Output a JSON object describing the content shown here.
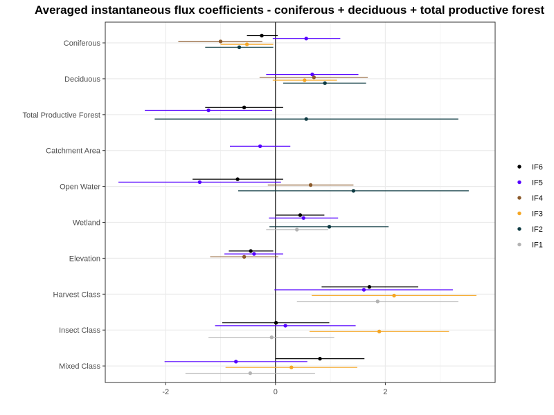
{
  "chart_data": {
    "type": "scatter",
    "title": "Averaged instantaneous flux coefficients - coniferous + deciduous + total productive forest",
    "xlabel": "",
    "ylabel": "",
    "xlim": [
      -3.1,
      4.0
    ],
    "x_ticks": [
      -2,
      0,
      2
    ],
    "x_tick_labels": [
      "-2",
      "0",
      "2"
    ],
    "grid": true,
    "zero_line": 0,
    "legend_position": "right",
    "categories": [
      "Coniferous",
      "Deciduous",
      "Total Productive Forest",
      "Catchment Area",
      "Open Water",
      "Wetland",
      "Elevation",
      "Harvest Class",
      "Insect Class",
      "Mixed Class"
    ],
    "series": [
      {
        "name": "IF6",
        "color": "#000000",
        "points": [
          {
            "category": "Coniferous",
            "x": -0.25,
            "low": -0.52,
            "high": 0.04
          },
          {
            "category": "Total Productive Forest",
            "x": -0.57,
            "low": -1.28,
            "high": 0.14
          },
          {
            "category": "Open Water",
            "x": -0.69,
            "low": -1.51,
            "high": 0.14
          },
          {
            "category": "Wetland",
            "x": 0.45,
            "low": 0.01,
            "high": 0.89
          },
          {
            "category": "Elevation",
            "x": -0.45,
            "low": -0.85,
            "high": -0.04
          },
          {
            "category": "Harvest Class",
            "x": 1.71,
            "low": 0.84,
            "high": 2.6
          },
          {
            "category": "Insect Class",
            "x": 0.01,
            "low": -0.97,
            "high": 0.98
          },
          {
            "category": "Mixed Class",
            "x": 0.81,
            "low": 0.0,
            "high": 1.62
          }
        ]
      },
      {
        "name": "IF5",
        "color": "#5500FF",
        "points": [
          {
            "category": "Coniferous",
            "x": 0.56,
            "low": -0.05,
            "high": 1.18
          },
          {
            "category": "Deciduous",
            "x": 0.67,
            "low": -0.17,
            "high": 1.51
          },
          {
            "category": "Total Productive Forest",
            "x": -1.22,
            "low": -2.38,
            "high": -0.06
          },
          {
            "category": "Catchment Area",
            "x": -0.28,
            "low": -0.83,
            "high": 0.27
          },
          {
            "category": "Open Water",
            "x": -1.38,
            "low": -2.86,
            "high": 0.1
          },
          {
            "category": "Wetland",
            "x": 0.51,
            "low": -0.12,
            "high": 1.14
          },
          {
            "category": "Elevation",
            "x": -0.39,
            "low": -0.93,
            "high": 0.14
          },
          {
            "category": "Harvest Class",
            "x": 1.61,
            "low": -0.02,
            "high": 3.23
          },
          {
            "category": "Insect Class",
            "x": 0.18,
            "low": -1.1,
            "high": 1.46
          },
          {
            "category": "Mixed Class",
            "x": -0.72,
            "low": -2.02,
            "high": 0.58
          }
        ]
      },
      {
        "name": "IF4",
        "color": "#8B5A2B",
        "points": [
          {
            "category": "Coniferous",
            "x": -1.0,
            "low": -1.77,
            "high": -0.24
          },
          {
            "category": "Deciduous",
            "x": 0.7,
            "low": -0.29,
            "high": 1.68
          },
          {
            "category": "Open Water",
            "x": 0.64,
            "low": -0.14,
            "high": 1.42
          },
          {
            "category": "Elevation",
            "x": -0.57,
            "low": -1.19,
            "high": 0.05
          }
        ]
      },
      {
        "name": "IF3",
        "color": "#F5A623",
        "points": [
          {
            "category": "Coniferous",
            "x": -0.52,
            "low": -1.0,
            "high": -0.04
          },
          {
            "category": "Deciduous",
            "x": 0.53,
            "low": -0.05,
            "high": 1.12
          },
          {
            "category": "Harvest Class",
            "x": 2.16,
            "low": 0.66,
            "high": 3.66
          },
          {
            "category": "Insect Class",
            "x": 1.89,
            "low": 0.62,
            "high": 3.16
          },
          {
            "category": "Mixed Class",
            "x": 0.29,
            "low": -0.91,
            "high": 1.49
          }
        ]
      },
      {
        "name": "IF2",
        "color": "#0E3B43",
        "points": [
          {
            "category": "Coniferous",
            "x": -0.66,
            "low": -1.28,
            "high": -0.04
          },
          {
            "category": "Deciduous",
            "x": 0.9,
            "low": 0.14,
            "high": 1.65
          },
          {
            "category": "Total Productive Forest",
            "x": 0.56,
            "low": -2.2,
            "high": 3.33
          },
          {
            "category": "Open Water",
            "x": 1.42,
            "low": -0.68,
            "high": 3.52
          },
          {
            "category": "Wetland",
            "x": 0.98,
            "low": -0.11,
            "high": 2.06
          }
        ]
      },
      {
        "name": "IF1",
        "color": "#B3B3B3",
        "points": [
          {
            "category": "Wetland",
            "x": 0.39,
            "low": -0.17,
            "high": 0.96
          },
          {
            "category": "Harvest Class",
            "x": 1.86,
            "low": 0.39,
            "high": 3.33
          },
          {
            "category": "Insect Class",
            "x": -0.07,
            "low": -1.22,
            "high": 1.07
          },
          {
            "category": "Mixed Class",
            "x": -0.46,
            "low": -1.64,
            "high": 0.72
          }
        ]
      }
    ]
  }
}
